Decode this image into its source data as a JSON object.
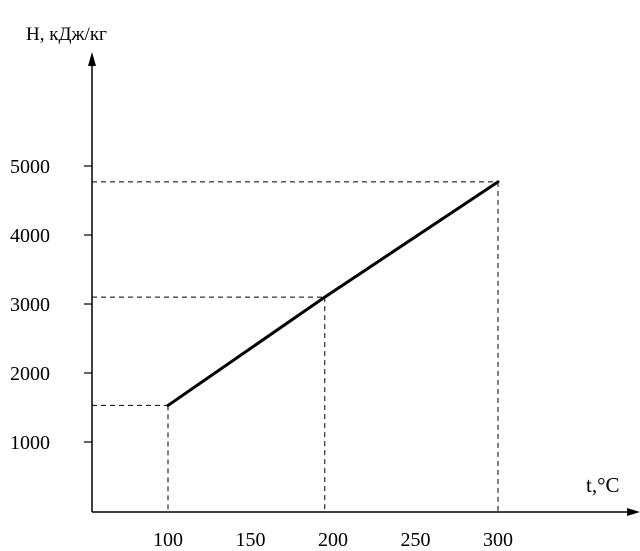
{
  "chart_data": {
    "type": "line",
    "title": "",
    "ylabel": "H, кДж/кг",
    "xlabel": "t,°C",
    "xlim": [
      50,
      350
    ],
    "ylim": [
      0,
      6000
    ],
    "x_ticks": [
      100,
      150,
      200,
      250,
      300
    ],
    "y_ticks": [
      1000,
      2000,
      3000,
      4000,
      5000
    ],
    "x_tick_labels": [
      "100",
      "150",
      "200",
      "250",
      "300"
    ],
    "y_tick_labels": [
      "1000",
      "2000",
      "3000",
      "4000",
      "5000"
    ],
    "series": [
      {
        "x": [
          100,
          195,
          300
        ],
        "y": [
          1530,
          3100,
          4770
        ]
      }
    ],
    "reference_points": [
      {
        "x": 100,
        "y": 1530
      },
      {
        "x": 195,
        "y": 3100
      },
      {
        "x": 300,
        "y": 4770
      }
    ],
    "grid": false,
    "colors": {
      "line": "#000000",
      "axis": "#000000",
      "guide": "#000000"
    }
  }
}
